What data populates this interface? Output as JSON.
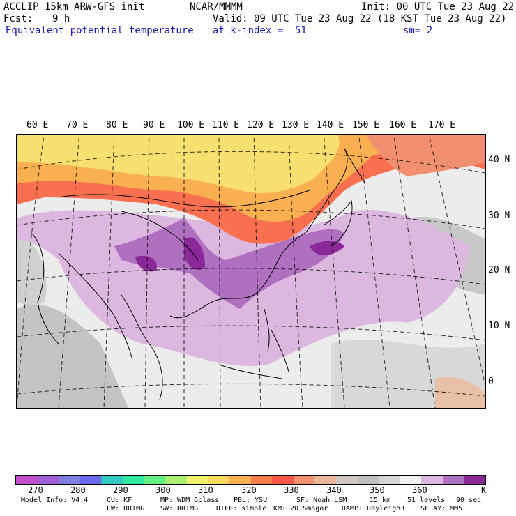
{
  "header": {
    "model": "ACCLIP 15km ARW-GFS init",
    "org": "NCAR/MMMM",
    "init": "Init: 00 UTC Tue 23 Aug 22",
    "fcst_label": "Fcst:",
    "fcst_value": "9 h",
    "valid": "Valid: 09 UTC Tue 23 Aug 22 (18 KST Tue 23 Aug 22)",
    "field": "Equivalent potential temperature",
    "level": "at k-index =  51",
    "smoothing": "sm= 2"
  },
  "map": {
    "lon_labels": [
      "60 E",
      "70 E",
      "80 E",
      "90 E",
      "100 E",
      "110 E",
      "120 E",
      "130 E",
      "140 E",
      "150 E",
      "160 E",
      "170 E"
    ],
    "lat_labels": [
      "40 N",
      "30 N",
      "20 N",
      "10 N",
      "0"
    ]
  },
  "colorbar": {
    "colors": [
      "#c050c8",
      "#a060d8",
      "#8080e0",
      "#6a6aea",
      "#30c8c0",
      "#30e8a0",
      "#60f080",
      "#a8f070",
      "#f0f070",
      "#f8d860",
      "#f8b050",
      "#f88048",
      "#f85848",
      "#f09070",
      "#e8b898",
      "#d0c8c0",
      "#c0c0c0",
      "#d4d4d4",
      "#f0f0f0",
      "#dcb8e0",
      "#b070c0",
      "#8a2898"
    ],
    "tick_labels": [
      "270",
      "280",
      "290",
      "300",
      "310",
      "320",
      "330",
      "340",
      "350",
      "360"
    ],
    "unit": "K"
  },
  "footer": {
    "line1": [
      "Model Info: V4.4",
      "CU: KF",
      "MP: WDM 6class",
      "PBL: YSU",
      "SF: Noah LSM",
      "15 km",
      "51 levels",
      "90 sec"
    ],
    "line2": [
      "LW: RRTMG",
      "SW: RRTMG",
      "DIFF: simple",
      "KM: 2D Smagor",
      "DAMP: Rayleigh3",
      "SFLAY: MM5"
    ]
  }
}
